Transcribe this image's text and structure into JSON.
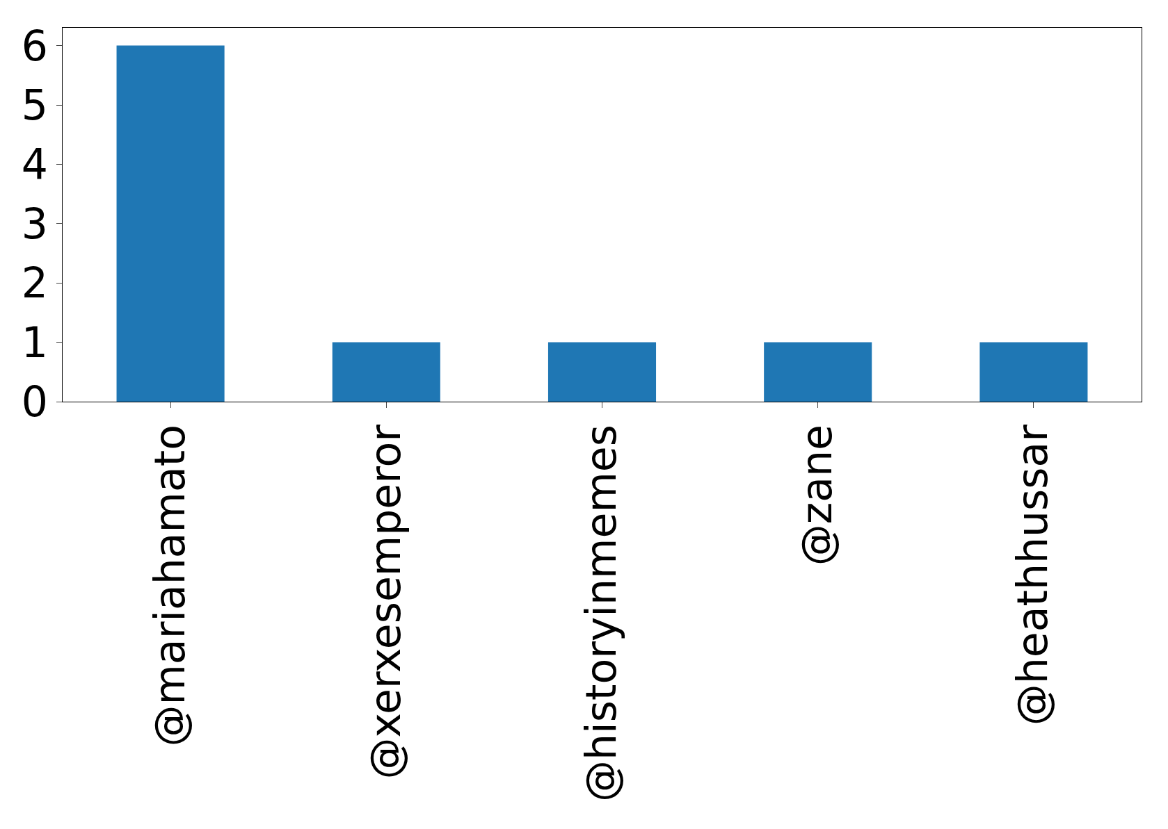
{
  "chart_data": {
    "type": "bar",
    "categories": [
      "@mariahamato",
      "@xerxesemperor",
      "@historyinmemes",
      "@zane",
      "@heathhussar"
    ],
    "values": [
      6,
      1,
      1,
      1,
      1
    ],
    "color": "#1f77b4",
    "ylim": [
      0,
      6.3
    ],
    "yticks": [
      0,
      1,
      2,
      3,
      4,
      5,
      6
    ]
  }
}
